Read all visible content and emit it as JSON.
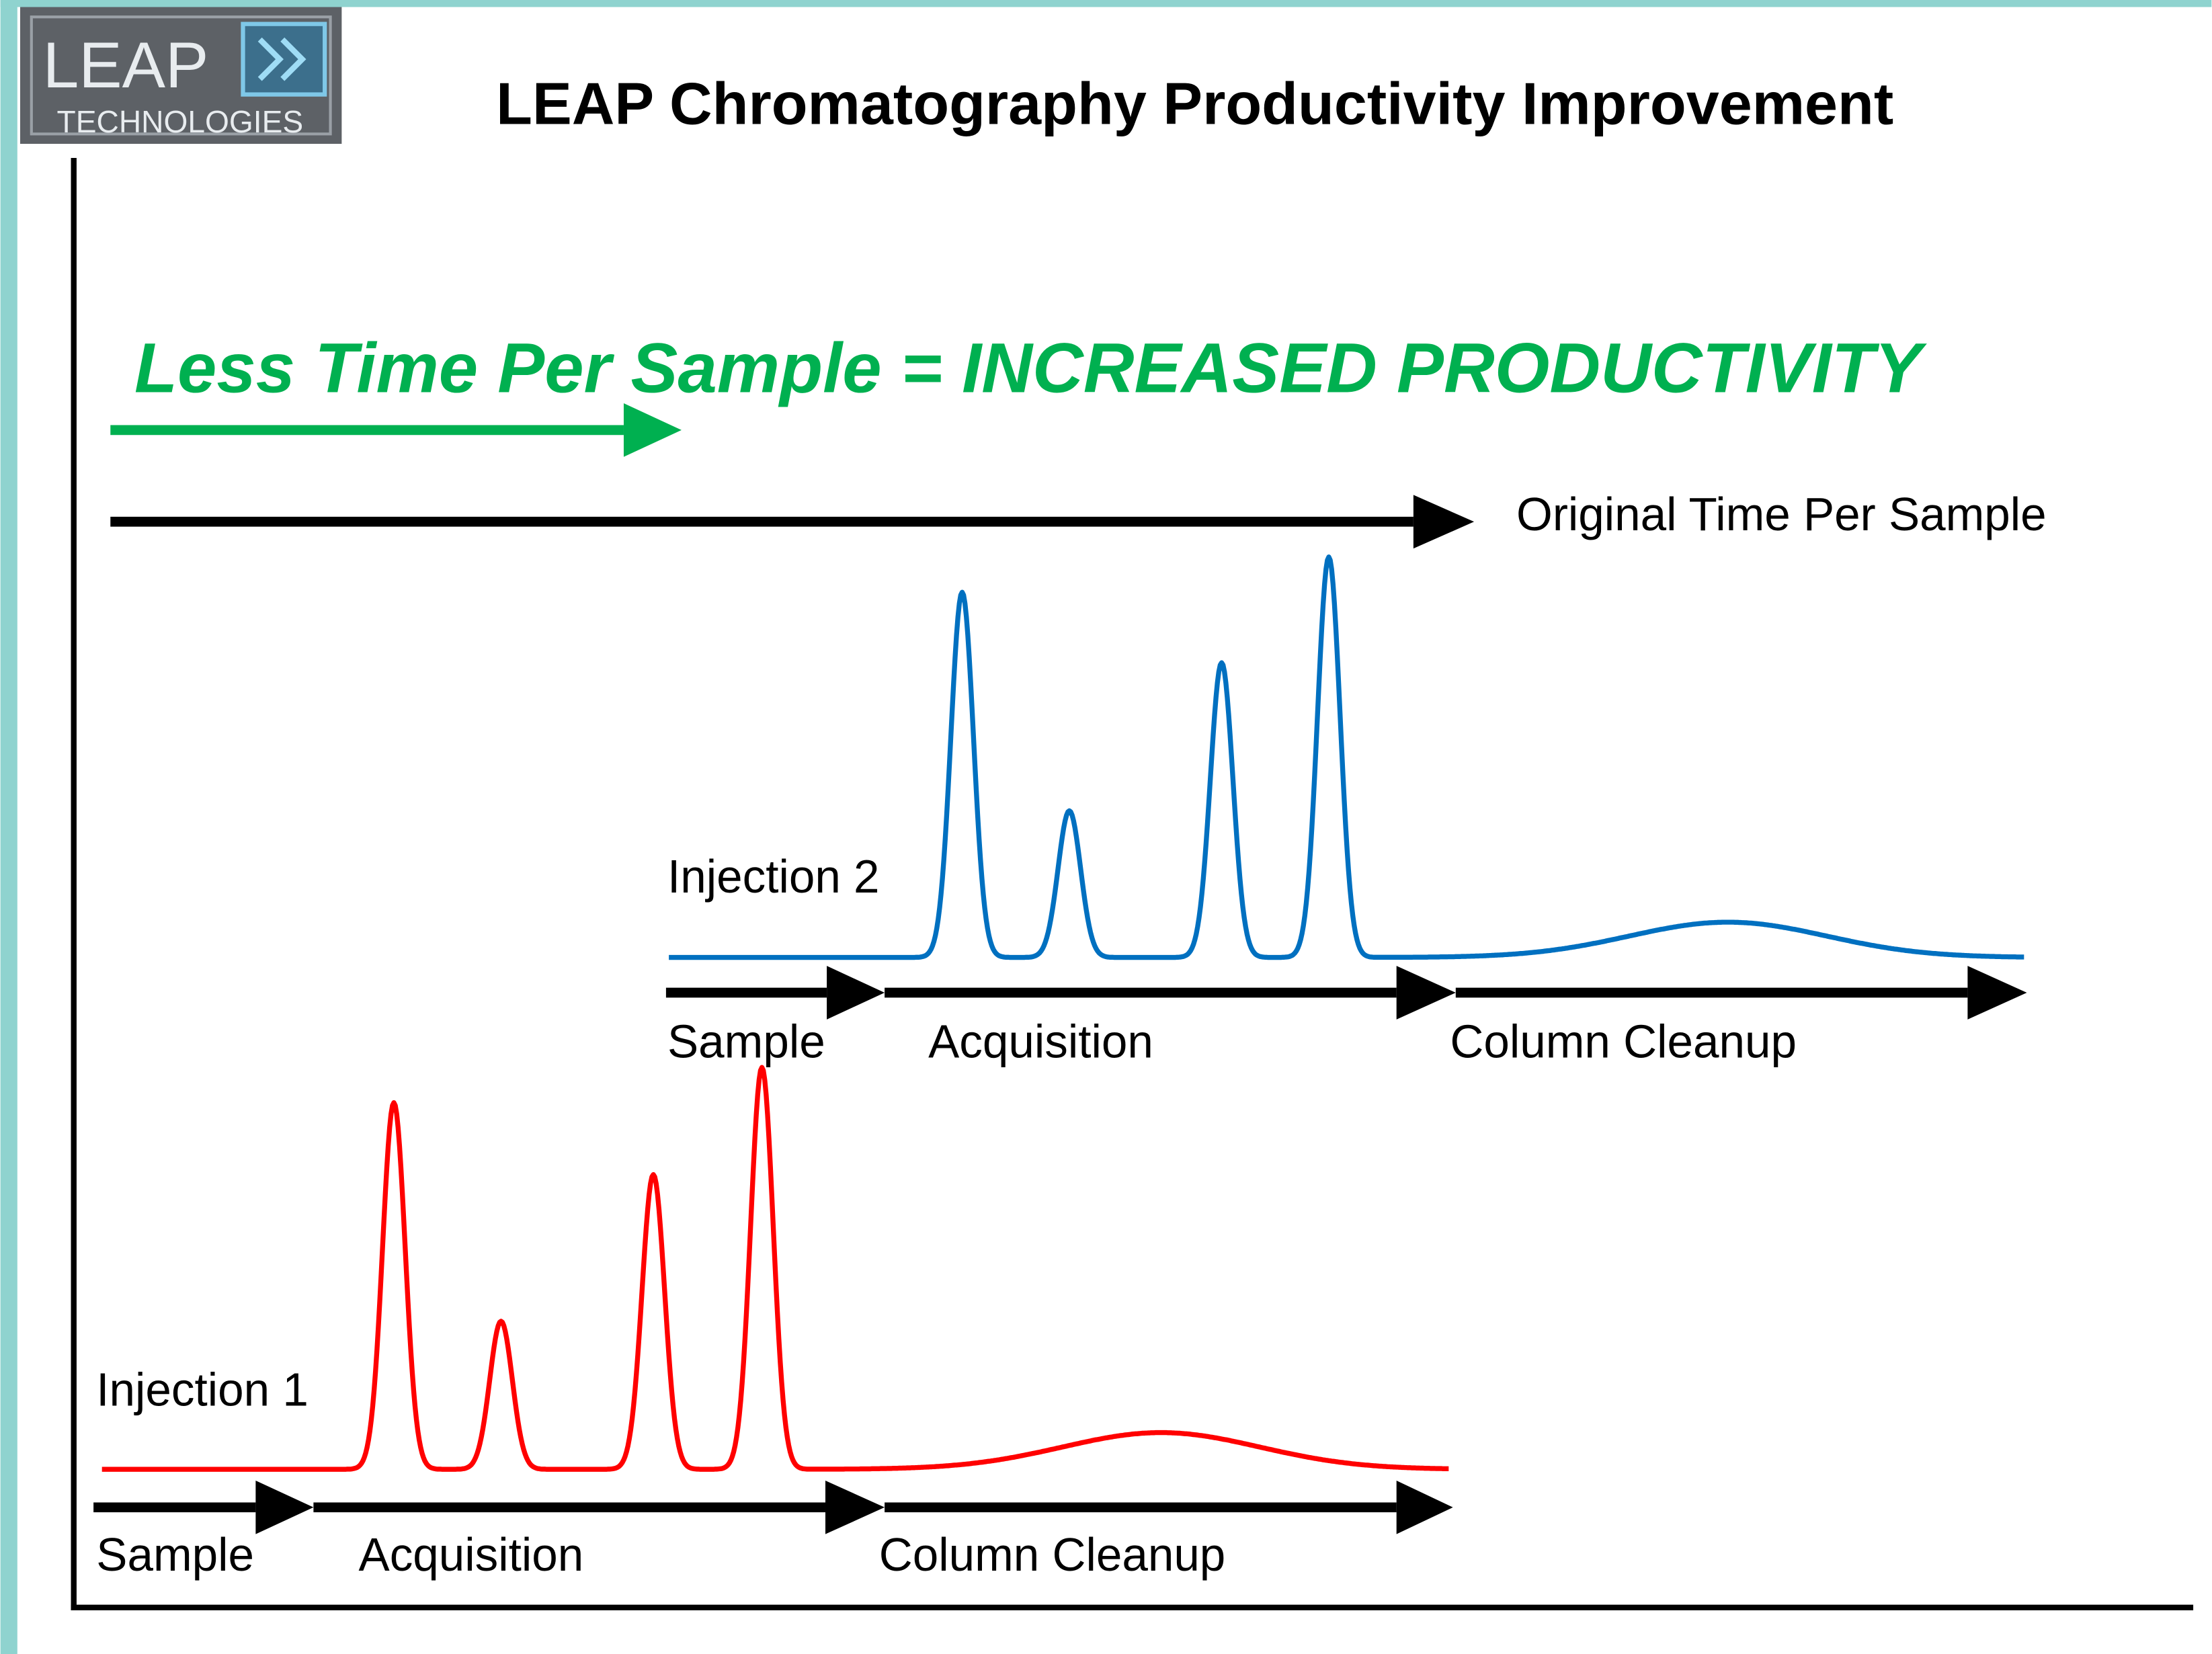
{
  "header": {
    "logo_name": "LEAP",
    "logo_subtitle": "TECHNOLOGIES",
    "title": "LEAP Chromatography Productivity Improvement"
  },
  "headline": "Less Time Per Sample = INCREASED PRODUCTIVITY",
  "original_label": "Original Time Per Sample",
  "injections": [
    {
      "label": "Injection 2",
      "phases": [
        "Sample",
        "Acquisition",
        "Column Cleanup"
      ]
    },
    {
      "label": "Injection 1",
      "phases": [
        "Sample",
        "Acquisition",
        "Column Cleanup"
      ]
    }
  ]
}
